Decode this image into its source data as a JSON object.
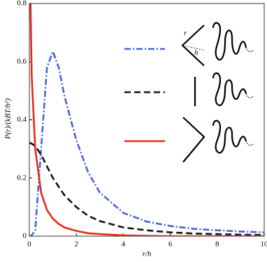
{
  "chart_data": {
    "type": "line",
    "xlabel": "r/h",
    "ylabel": "P(r)/(kBT/h²)",
    "annotations": [
      "r",
      "h"
    ],
    "x": [
      0,
      0.05,
      0.1,
      0.25,
      0.5,
      0.75,
      1,
      1.25,
      1.5,
      2,
      2.5,
      3,
      4,
      5,
      6,
      7,
      8,
      9,
      10
    ],
    "series": [
      {
        "color": "#4a62d8",
        "dash": "dashdot",
        "values": [
          0,
          0,
          0.003,
          0.02,
          0.3,
          0.58,
          0.635,
          0.58,
          0.48,
          0.33,
          0.22,
          0.15,
          0.08,
          0.05,
          0.035,
          0.025,
          0.02,
          0.016,
          0.013
        ]
      },
      {
        "color": "#111111",
        "dash": "dashed",
        "values": [
          0.32,
          0.32,
          0.318,
          0.31,
          0.28,
          0.24,
          0.2,
          0.17,
          0.14,
          0.1,
          0.07,
          0.052,
          0.03,
          0.02,
          0.013,
          0.009,
          0.007,
          0.005,
          0.004
        ]
      },
      {
        "color": "#e8281e",
        "dash": "solid",
        "values": [
          null,
          0.8,
          0.55,
          0.3,
          0.15,
          0.09,
          0.06,
          0.042,
          0.03,
          0.018,
          0.01,
          0.007,
          0.003,
          0.001,
          0,
          0,
          0,
          0,
          0
        ]
      }
    ],
    "xlim": [
      0,
      10
    ],
    "xticks": [
      0,
      2,
      4,
      6,
      8,
      10
    ],
    "ylim": [
      0,
      0.8
    ],
    "yticks": [
      0,
      0.2,
      0.4,
      0.6,
      0.8
    ]
  }
}
